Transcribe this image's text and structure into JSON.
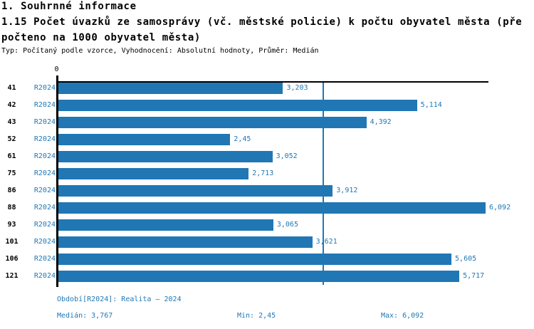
{
  "header": {
    "title": "1. Souhrnné informace",
    "subtitle_line1": "1.15 Počet úvazků ze samosprávy (vč. městské policie) k počtu obyvatel města (pře",
    "subtitle_line2": "počteno na 1000 obyvatel města)",
    "meta": "Typ: Počítaný podle vzorce, Vyhodnocení: Absolutní hodnoty, Průměr: Medián"
  },
  "chart_data": {
    "type": "bar",
    "orientation": "horizontal",
    "title": "1.15 Počet úvazků ze samosprávy (vč. městské policie) k počtu obyvatel města (přepočteno na 1000 obyvatel města)",
    "categories": [
      "41",
      "42",
      "43",
      "52",
      "61",
      "75",
      "86",
      "88",
      "93",
      "101",
      "106",
      "121"
    ],
    "period_label": "R2024",
    "series": [
      {
        "name": "R2024",
        "values": [
          3.203,
          5.114,
          4.392,
          2.45,
          3.052,
          2.713,
          3.912,
          6.092,
          3.065,
          3.621,
          5.605,
          5.717
        ]
      }
    ],
    "value_labels": [
      "3,203",
      "5,114",
      "4,392",
      "2,45",
      "3,052",
      "2,713",
      "3,912",
      "6,092",
      "3,065",
      "3,621",
      "5,605",
      "5,717"
    ],
    "axis_origin_label": "0",
    "xlim": [
      0,
      6.15
    ],
    "median_value": 3.767,
    "min_value": 2.45,
    "max_value": 6.092,
    "grid": false,
    "legend": false,
    "colors": {
      "bar": "#2077b4",
      "median_line": "#1f77b4",
      "accent_text": "#1f77b4",
      "axis": "#000000"
    }
  },
  "footer": {
    "period_info": "Období[R2024]: Realita – 2024",
    "median_label": "Medián: 3,767",
    "min_label": "Min: 2,45",
    "max_label": "Max: 6,092"
  }
}
